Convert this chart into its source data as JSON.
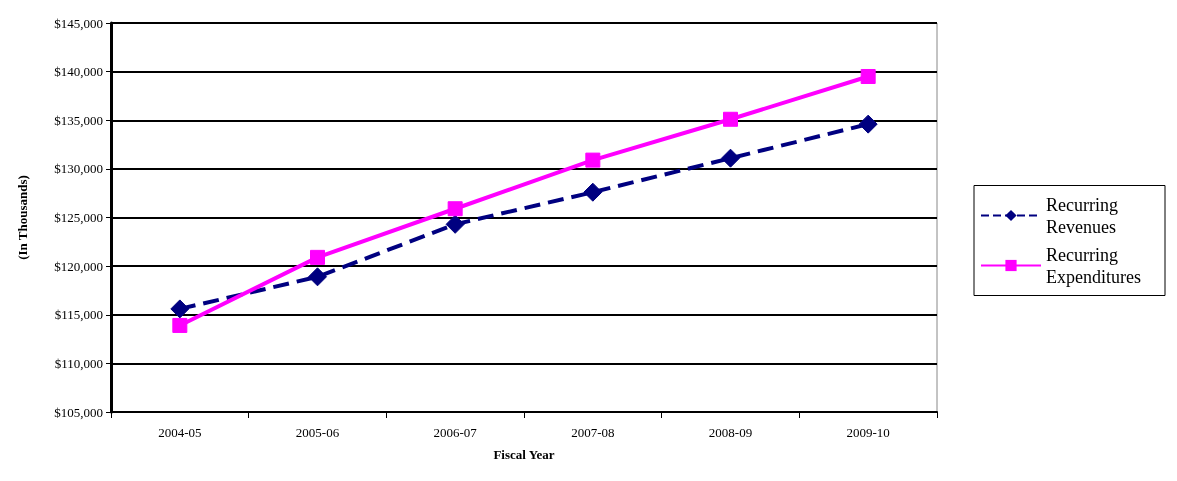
{
  "chart_data": {
    "type": "line",
    "xlabel": "Fiscal Year",
    "ylabel": "(In Thousands)",
    "categories": [
      "2004-05",
      "2005-06",
      "2006-07",
      "2007-08",
      "2008-09",
      "2009-10"
    ],
    "series": [
      {
        "name": "Recurring Revenues",
        "color": "#000080",
        "values": [
          115600,
          118900,
          124300,
          127600,
          131100,
          134600
        ],
        "marker": "diamond",
        "line_style": "dashed"
      },
      {
        "name": "Recurring Expenditures",
        "color": "#ff00ff",
        "values": [
          113900,
          120900,
          125900,
          130900,
          135100,
          139500
        ],
        "marker": "square",
        "line_style": "solid"
      }
    ],
    "ylim": [
      105000,
      145000
    ],
    "yticks": [
      {
        "value": 105000,
        "label": "$105,000"
      },
      {
        "value": 110000,
        "label": "$110,000"
      },
      {
        "value": 115000,
        "label": "$115,000"
      },
      {
        "value": 120000,
        "label": "$120,000"
      },
      {
        "value": 125000,
        "label": "$125,000"
      },
      {
        "value": 130000,
        "label": "$130,000"
      },
      {
        "value": 135000,
        "label": "$135,000"
      },
      {
        "value": 140000,
        "label": "$140,000"
      },
      {
        "value": 145000,
        "label": "$145,000"
      }
    ],
    "grid": "y",
    "legend": "right"
  }
}
